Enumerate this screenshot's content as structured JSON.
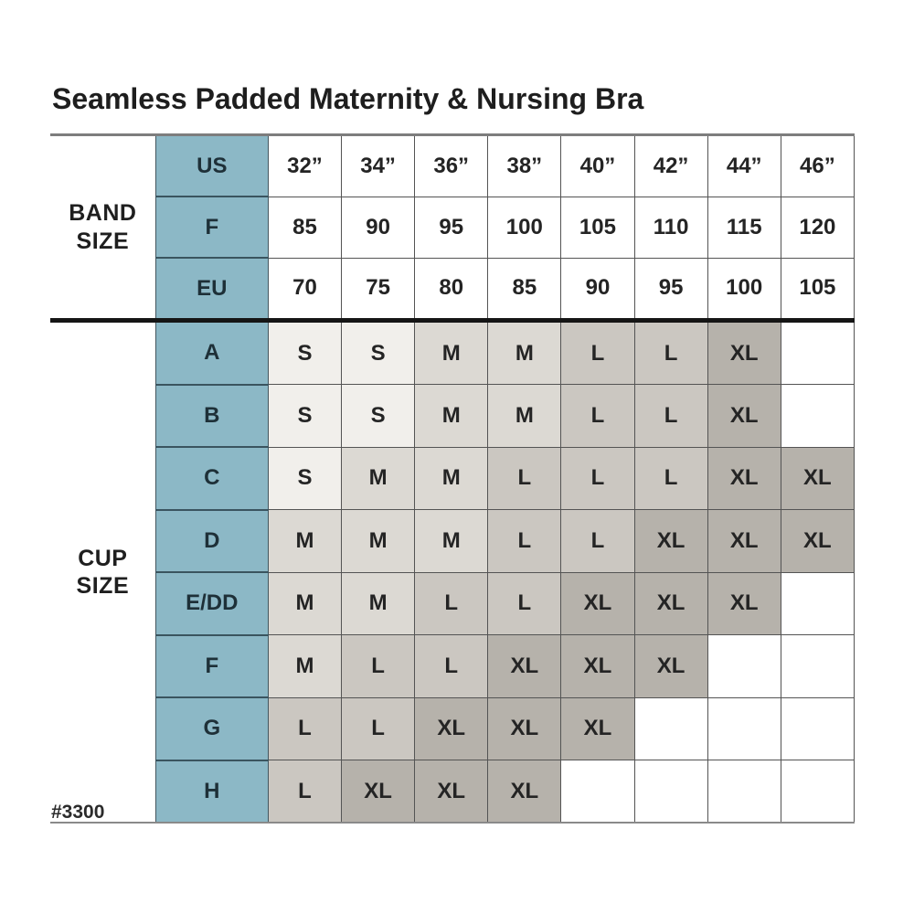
{
  "title": "Seamless Padded Maternity & Nursing Bra",
  "footnote": "#3300",
  "colors": {
    "teal": "#8cb8c6",
    "teal_text": "#1e3038",
    "size_colors": {
      "S": "#f1efeb",
      "M": "#dcd9d3",
      "L": "#cbc7c1",
      "XL": "#b6b2ab"
    }
  },
  "chart_data": {
    "type": "table",
    "title": "Seamless Padded Maternity & Nursing Bra",
    "columns": 8,
    "sections": [
      {
        "label": "BAND SIZE",
        "rows": [
          {
            "header": "US",
            "values": [
              "32”",
              "34”",
              "36”",
              "38”",
              "40”",
              "42”",
              "44”",
              "46”"
            ]
          },
          {
            "header": "F",
            "values": [
              "85",
              "90",
              "95",
              "100",
              "105",
              "110",
              "115",
              "120"
            ]
          },
          {
            "header": "EU",
            "values": [
              "70",
              "75",
              "80",
              "85",
              "90",
              "95",
              "100",
              "105"
            ]
          }
        ]
      },
      {
        "label": "CUP SIZE",
        "rows": [
          {
            "header": "A",
            "values": [
              "S",
              "S",
              "M",
              "M",
              "L",
              "L",
              "XL",
              ""
            ]
          },
          {
            "header": "B",
            "values": [
              "S",
              "S",
              "M",
              "M",
              "L",
              "L",
              "XL",
              ""
            ]
          },
          {
            "header": "C",
            "values": [
              "S",
              "M",
              "M",
              "L",
              "L",
              "L",
              "XL",
              "XL"
            ]
          },
          {
            "header": "D",
            "values": [
              "M",
              "M",
              "M",
              "L",
              "L",
              "XL",
              "XL",
              "XL"
            ]
          },
          {
            "header": "E/DD",
            "values": [
              "M",
              "M",
              "L",
              "L",
              "XL",
              "XL",
              "XL",
              ""
            ]
          },
          {
            "header": "F",
            "values": [
              "M",
              "L",
              "L",
              "XL",
              "XL",
              "XL",
              "",
              ""
            ]
          },
          {
            "header": "G",
            "values": [
              "L",
              "L",
              "XL",
              "XL",
              "XL",
              "",
              "",
              ""
            ]
          },
          {
            "header": "H",
            "values": [
              "L",
              "XL",
              "XL",
              "XL",
              "",
              "",
              "",
              ""
            ]
          }
        ]
      }
    ]
  }
}
